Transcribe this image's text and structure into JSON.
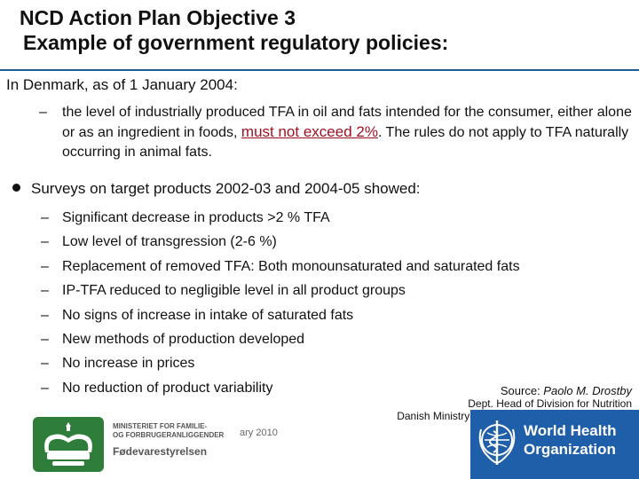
{
  "slide": {
    "title_line1": "NCD Action Plan Objective 3",
    "title_line2": "Example of government regulatory policies:",
    "intro": "In Denmark, as of 1 January 2004:",
    "sub_dash": "–",
    "sub_text_before": "the level of industrially produced TFA in oil and fats intended for the consumer, either alone or as an ingredient in foods, ",
    "sub_highlight": "must not exceed 2%",
    "sub_text_after": ". The rules do not apply to TFA naturally occurring in animal fats.",
    "bullet_head": "Surveys on target products 2002-03 and 2004-05 showed:",
    "dash": "–",
    "findings": [
      "Significant decrease in products >2 % TFA",
      "Low level of transgression (2-6 %)",
      "Replacement of removed TFA: Both monounsaturated and saturated fats",
      "IP-TFA reduced to negligible level in all product groups",
      "No signs of increase in intake of saturated fats",
      "New methods of production developed",
      "No increase in prices",
      "No reduction of product variability"
    ],
    "source_label": "Source: ",
    "source_name": "Paolo M. Drostby",
    "source_line2": "Dept. Head of Division for Nutrition",
    "source_line3": "Danish Ministry of Food, Agriculture and Fisheries"
  },
  "footer": {
    "ministry_line1": "MINISTERIET FOR FAMILIE-",
    "ministry_line2": "OG FORBRUGERANLIGGENDER",
    "ministry_sub": "Fødevarestyrelsen",
    "date_fragment": "ary 2010",
    "who_line1": "World Health",
    "who_line2": "Organization"
  },
  "colors": {
    "accent_rule": "#1d5e96",
    "highlight": "#a01020",
    "who_blue": "#1f5ea9",
    "crest_green": "#2e7d3a"
  }
}
